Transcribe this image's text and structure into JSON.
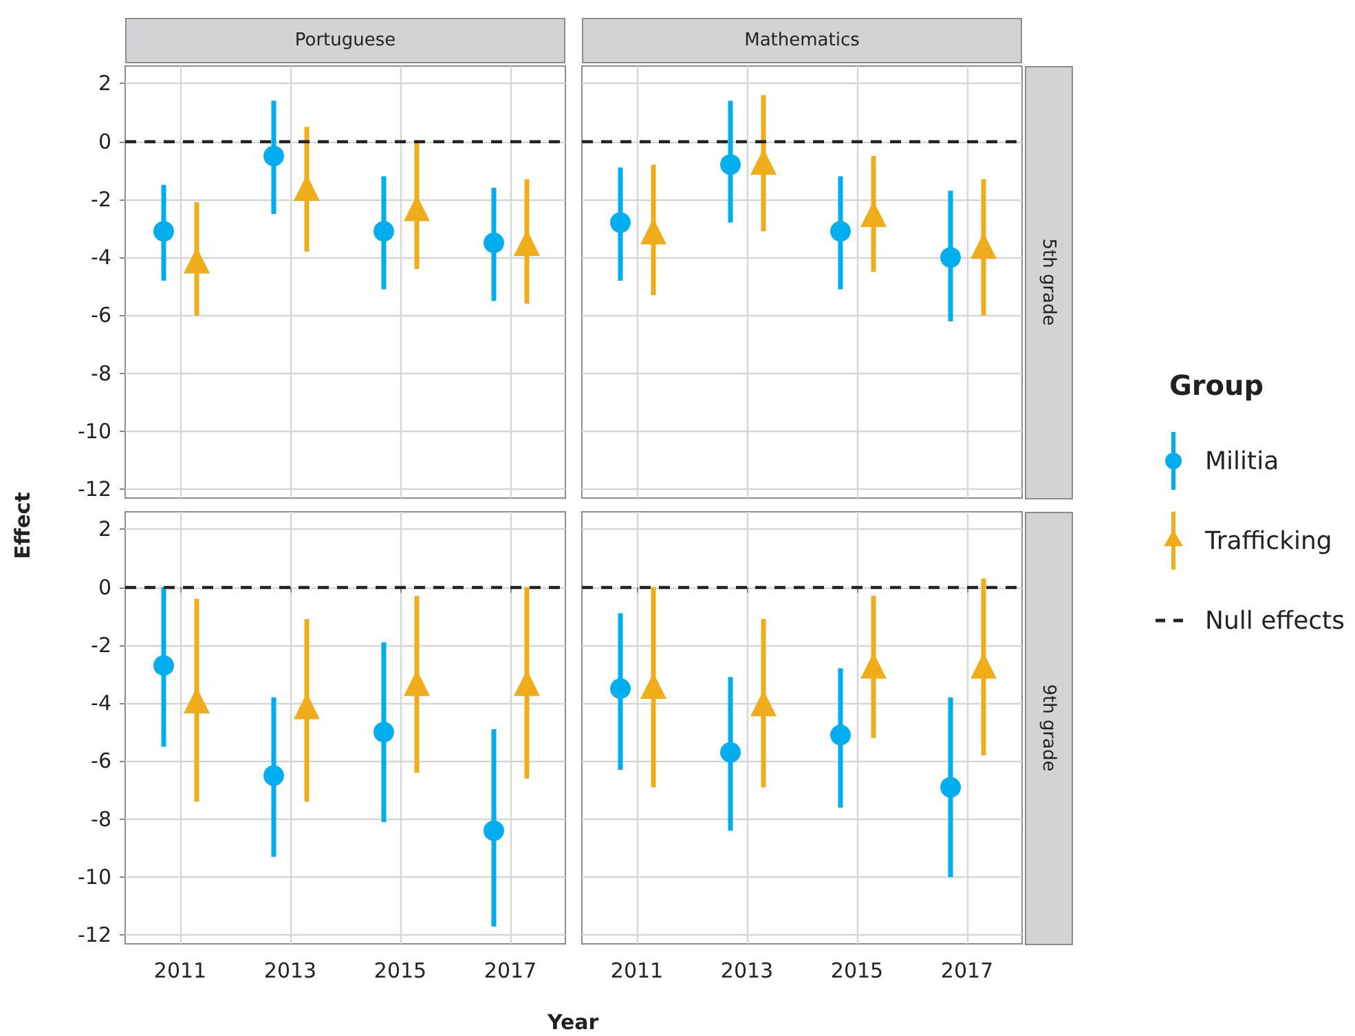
{
  "chart_data": [
    {
      "type": "scatter",
      "title": "Portuguese",
      "ylabel": "Effect",
      "categories": [
        "2011",
        "2013",
        "2015",
        "2017"
      ],
      "ylim": [
        -12.3,
        2.6
      ],
      "yticks": [
        -12,
        -10,
        -8,
        -6,
        -4,
        -2,
        0,
        2
      ],
      "grid": true,
      "tick_labels": "y",
      "legend": "right",
      "legend_title": "Group",
      "ref_lines": [
        {
          "axis": "y",
          "value": 0,
          "label": "Null effects",
          "color": "#222222",
          "line_style": "dashed"
        }
      ],
      "series": [
        {
          "name": "Militia",
          "color": "#00aeef",
          "marker": "circle",
          "values": [
            -3.1,
            -0.5,
            -3.1,
            -3.5
          ],
          "errors": [
            [
              -4.8,
              -1.5
            ],
            [
              -2.5,
              1.4
            ],
            [
              -5.1,
              -1.2
            ],
            [
              -5.5,
              -1.6
            ]
          ]
        },
        {
          "name": "Trafficking",
          "color": "#f0ad1b",
          "marker": "triangle",
          "values": [
            -4.1,
            -1.6,
            -2.3,
            -3.5
          ],
          "errors": [
            [
              -6.0,
              -2.1
            ],
            [
              -3.8,
              0.5
            ],
            [
              -4.4,
              0.0
            ],
            [
              -5.6,
              -1.3
            ]
          ]
        }
      ]
    },
    {
      "type": "scatter",
      "title": "Mathematics",
      "y2label": "5th grade",
      "categories": [
        "2011",
        "2013",
        "2015",
        "2017"
      ],
      "ylim": [
        -12.3,
        2.6
      ],
      "yticks": [
        -12,
        -10,
        -8,
        -6,
        -4,
        -2,
        0,
        2
      ],
      "grid": true,
      "tick_labels": false,
      "ref_lines": [
        {
          "axis": "y",
          "value": 0,
          "color": "#222222",
          "line_style": "dashed"
        }
      ],
      "series": [
        {
          "color": "#00aeef",
          "marker": "circle",
          "values": [
            -2.8,
            -0.8,
            -3.1,
            -4.0
          ],
          "errors": [
            [
              -4.8,
              -0.9
            ],
            [
              -2.8,
              1.4
            ],
            [
              -5.1,
              -1.2
            ],
            [
              -6.2,
              -1.7
            ]
          ]
        },
        {
          "color": "#f0ad1b",
          "marker": "triangle",
          "values": [
            -3.1,
            -0.7,
            -2.5,
            -3.6
          ],
          "errors": [
            [
              -5.3,
              -0.8
            ],
            [
              -3.1,
              1.6
            ],
            [
              -4.5,
              -0.5
            ],
            [
              -6.0,
              -1.3
            ]
          ]
        }
      ]
    },
    {
      "type": "scatter",
      "xlabel": "Year",
      "categories": [
        "2011",
        "2013",
        "2015",
        "2017"
      ],
      "ylim": [
        -12.3,
        2.6
      ],
      "yticks": [
        -12,
        -10,
        -8,
        -6,
        -4,
        -2,
        0,
        2
      ],
      "grid": true,
      "legend": false,
      "ref_lines": [
        {
          "axis": "y",
          "value": 0,
          "color": "#222222",
          "line_style": "dashed"
        }
      ],
      "series": [
        {
          "color": "#00aeef",
          "marker": "circle",
          "values": [
            -2.7,
            -6.5,
            -5.0,
            -8.4
          ],
          "errors": [
            [
              -5.5,
              0.0
            ],
            [
              -9.3,
              -3.8
            ],
            [
              -8.1,
              -1.9
            ],
            [
              -11.7,
              -4.9
            ]
          ]
        },
        {
          "color": "#f0ad1b",
          "marker": "triangle",
          "values": [
            -3.9,
            -4.1,
            -3.3,
            -3.3
          ],
          "errors": [
            [
              -7.4,
              -0.4
            ],
            [
              -7.4,
              -1.1
            ],
            [
              -6.4,
              -0.3
            ],
            [
              -6.6,
              0.0
            ]
          ]
        }
      ]
    },
    {
      "type": "scatter",
      "y2label": "9th grade",
      "categories": [
        "2011",
        "2013",
        "2015",
        "2017"
      ],
      "ylim": [
        -12.3,
        2.6
      ],
      "yticks": [
        -12,
        -10,
        -8,
        -6,
        -4,
        -2,
        0,
        2
      ],
      "grid": true,
      "tick_labels": "x",
      "legend": false,
      "ref_lines": [
        {
          "axis": "y",
          "value": 0,
          "color": "#222222",
          "line_style": "dashed"
        }
      ],
      "series": [
        {
          "color": "#00aeef",
          "marker": "circle",
          "values": [
            -3.5,
            -5.7,
            -5.1,
            -6.9
          ],
          "errors": [
            [
              -6.3,
              -0.9
            ],
            [
              -8.4,
              -3.1
            ],
            [
              -7.6,
              -2.8
            ],
            [
              -10.0,
              -3.8
            ]
          ]
        },
        {
          "color": "#f0ad1b",
          "marker": "triangle",
          "values": [
            -3.4,
            -4.0,
            -2.7,
            -2.7
          ],
          "errors": [
            [
              -6.9,
              0.0
            ],
            [
              -6.9,
              -1.1
            ],
            [
              -5.2,
              -0.3
            ],
            [
              -5.8,
              0.3
            ]
          ]
        }
      ]
    }
  ]
}
